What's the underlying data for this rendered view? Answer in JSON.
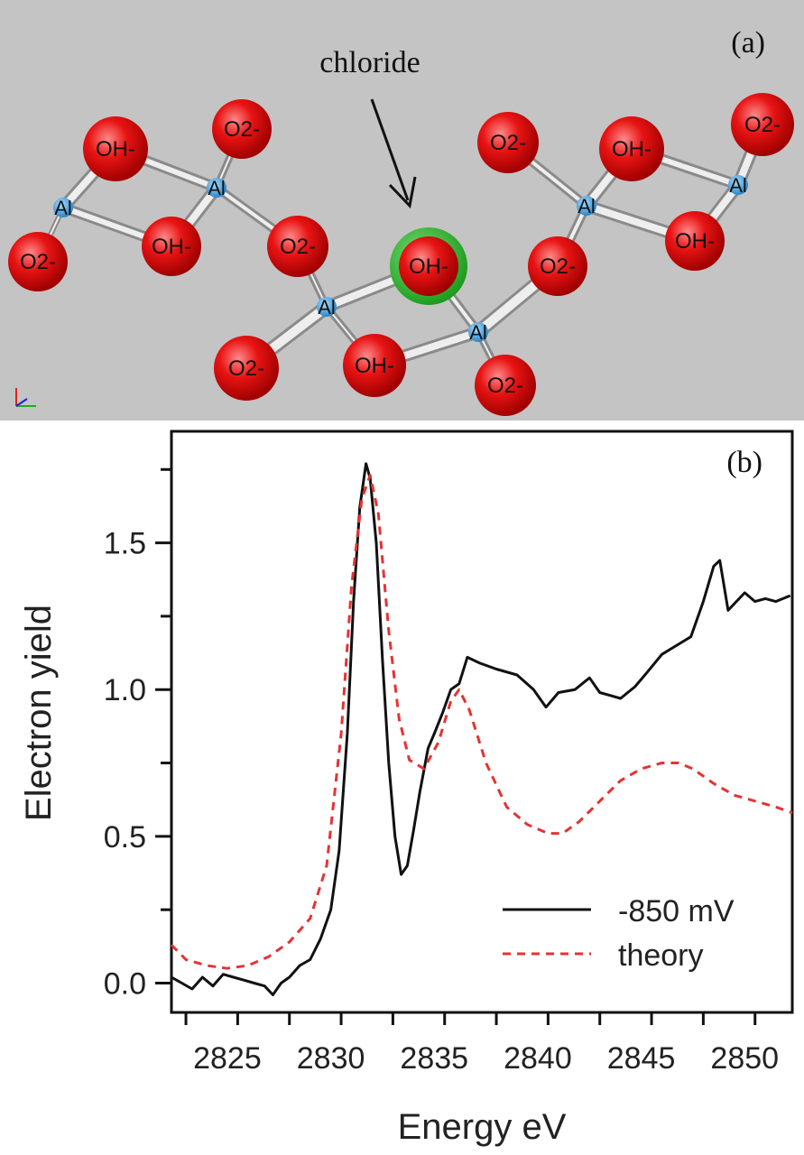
{
  "panel_a": {
    "label": "(a)",
    "arrow_label": "chloride",
    "ions": {
      "hydroxide": "OH-",
      "oxide": "O2-",
      "aluminum": "Al"
    },
    "colors": {
      "background": "#c4c4c4",
      "oxygen": "#e01010",
      "aluminum": "#3aa0dd",
      "chloride": "#22b022"
    }
  },
  "chart_data": {
    "type": "line",
    "panel_label": "(b)",
    "xlabel": "Energy eV",
    "ylabel": "Electron yield",
    "xlim": [
      2822.3,
      2852.3
    ],
    "ylim": [
      -0.1,
      1.88
    ],
    "x_ticks": [
      2825,
      2830,
      2835,
      2840,
      2845,
      2850
    ],
    "x_tick_labels": [
      "2825",
      "2830",
      "2835",
      "2840",
      "2845",
      "2850"
    ],
    "y_ticks": [
      0.0,
      0.5,
      1.0,
      1.5
    ],
    "y_tick_labels": [
      "0.0",
      "0.5",
      "1.0",
      "1.5"
    ],
    "legend_position": "bottom-right",
    "series": [
      {
        "name": "-850 mV",
        "color": "#111111",
        "style": "solid",
        "x": [
          2822.3,
          2822.8,
          2823.3,
          2823.8,
          2824.3,
          2824.8,
          2825.3,
          2825.8,
          2826.3,
          2826.8,
          2827.2,
          2827.6,
          2828.0,
          2828.5,
          2829.0,
          2829.5,
          2830.0,
          2830.4,
          2830.8,
          2831.1,
          2831.4,
          2831.7,
          2831.9,
          2832.2,
          2832.5,
          2832.8,
          2833.1,
          2833.4,
          2833.7,
          2834.0,
          2834.3,
          2834.7,
          2835.0,
          2835.4,
          2835.8,
          2836.2,
          2836.6,
          2837.2,
          2838.0,
          2839.0,
          2839.8,
          2840.4,
          2841.0,
          2841.8,
          2842.5,
          2843.0,
          2843.5,
          2844.0,
          2844.7,
          2845.3,
          2846.0,
          2846.7,
          2847.4,
          2848.0,
          2848.5,
          2848.8,
          2849.2,
          2849.6,
          2850.0,
          2850.5,
          2851.0,
          2851.5,
          2852.2
        ],
        "y": [
          0.02,
          0.0,
          -0.02,
          0.02,
          -0.01,
          0.03,
          0.02,
          0.01,
          0.0,
          -0.01,
          -0.04,
          0.0,
          0.02,
          0.06,
          0.08,
          0.15,
          0.25,
          0.45,
          0.85,
          1.3,
          1.62,
          1.77,
          1.72,
          1.5,
          1.1,
          0.75,
          0.5,
          0.37,
          0.4,
          0.52,
          0.65,
          0.8,
          0.85,
          0.92,
          1.0,
          1.02,
          1.11,
          1.09,
          1.07,
          1.05,
          1.0,
          0.94,
          0.99,
          1.0,
          1.04,
          0.99,
          0.98,
          0.97,
          1.01,
          1.06,
          1.12,
          1.15,
          1.18,
          1.3,
          1.42,
          1.44,
          1.27,
          1.3,
          1.33,
          1.3,
          1.31,
          1.3,
          1.32
        ]
      },
      {
        "name": "theory",
        "color": "#e53333",
        "style": "dashed",
        "x": [
          2822.3,
          2823.0,
          2824.0,
          2825.0,
          2826.0,
          2827.0,
          2828.0,
          2829.0,
          2829.8,
          2830.5,
          2831.0,
          2831.5,
          2831.9,
          2832.3,
          2832.8,
          2833.3,
          2833.8,
          2834.5,
          2835.2,
          2835.8,
          2836.2,
          2836.7,
          2837.5,
          2838.5,
          2839.5,
          2840.5,
          2841.2,
          2842.0,
          2843.0,
          2844.0,
          2845.0,
          2846.0,
          2846.8,
          2847.5,
          2848.5,
          2849.5,
          2850.5,
          2851.5,
          2852.3
        ],
        "y": [
          0.13,
          0.08,
          0.06,
          0.05,
          0.06,
          0.09,
          0.14,
          0.22,
          0.4,
          0.85,
          1.35,
          1.65,
          1.73,
          1.6,
          1.2,
          0.9,
          0.76,
          0.73,
          0.82,
          0.96,
          1.0,
          0.93,
          0.75,
          0.6,
          0.54,
          0.51,
          0.51,
          0.55,
          0.62,
          0.69,
          0.73,
          0.75,
          0.75,
          0.73,
          0.68,
          0.64,
          0.62,
          0.6,
          0.58
        ]
      }
    ]
  }
}
